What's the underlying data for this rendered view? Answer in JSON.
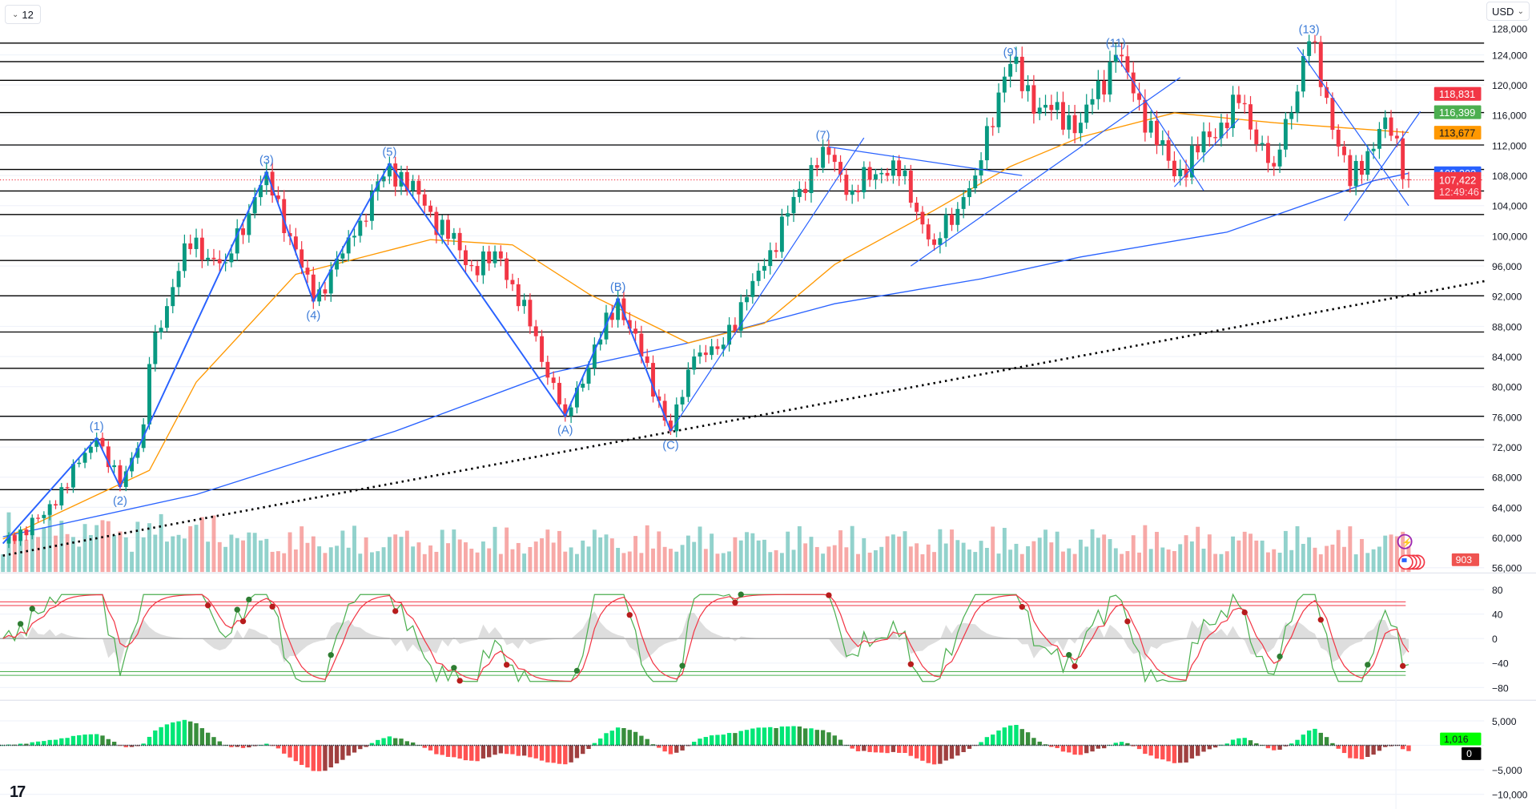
{
  "toolbar": {
    "interval": "12",
    "currency": "USD"
  },
  "logo": {
    "text": "TV"
  },
  "chart_data": {
    "type": "candlestick",
    "price_axis": {
      "ticks": [
        124000,
        120000,
        116000,
        112000,
        108000,
        104000,
        100000,
        96000,
        92000,
        88000,
        84000,
        80000,
        76000,
        72000,
        68000,
        64000,
        60000,
        56000
      ],
      "top_partial": 128000
    },
    "swing_closes": [
      [
        0,
        59200
      ],
      [
        7,
        63000
      ],
      [
        16,
        73200
      ],
      [
        20,
        66700
      ],
      [
        24,
        75000
      ],
      [
        25,
        83000
      ],
      [
        31,
        99000
      ],
      [
        38,
        96500
      ],
      [
        45,
        108500
      ],
      [
        53,
        91300
      ],
      [
        60,
        100000
      ],
      [
        66,
        109600
      ],
      [
        72,
        104000
      ],
      [
        80,
        96000
      ],
      [
        85,
        97000
      ],
      [
        90,
        88000
      ],
      [
        96,
        76100
      ],
      [
        105,
        91700
      ],
      [
        109,
        84000
      ],
      [
        114,
        74100
      ],
      [
        118,
        84000
      ],
      [
        122,
        85000
      ],
      [
        130,
        96000
      ],
      [
        134,
        103000
      ],
      [
        140,
        111800
      ],
      [
        145,
        106000
      ],
      [
        152,
        110000
      ],
      [
        159,
        98800
      ],
      [
        166,
        108000
      ],
      [
        170,
        119000
      ],
      [
        172,
        122800
      ],
      [
        177,
        117000
      ],
      [
        184,
        115000
      ],
      [
        190,
        124000
      ],
      [
        200,
        107900
      ],
      [
        211,
        117600
      ],
      [
        217,
        109200
      ],
      [
        223,
        125800
      ],
      [
        226,
        118300
      ],
      [
        230,
        106600
      ],
      [
        236,
        115700
      ],
      [
        240,
        107400
      ]
    ],
    "horizontal_levels": [
      125560,
      123100,
      120620,
      116340,
      112050,
      108800,
      105950,
      102830,
      96730,
      92050,
      87250,
      82440,
      76080,
      72960,
      66340
    ],
    "ema_orange": [
      [
        0,
        59800
      ],
      [
        25,
        68900
      ],
      [
        33,
        80600
      ],
      [
        50,
        94900
      ],
      [
        63,
        97500
      ],
      [
        73,
        99500
      ],
      [
        87,
        98800
      ],
      [
        100,
        92300
      ],
      [
        117,
        85800
      ],
      [
        130,
        88400
      ],
      [
        142,
        96200
      ],
      [
        159,
        103400
      ],
      [
        172,
        109200
      ],
      [
        184,
        113100
      ],
      [
        200,
        116300
      ],
      [
        217,
        115000
      ],
      [
        240,
        113700
      ]
    ],
    "ema_blue": [
      [
        0,
        60100
      ],
      [
        33,
        65700
      ],
      [
        67,
        74100
      ],
      [
        94,
        81900
      ],
      [
        117,
        85800
      ],
      [
        142,
        91000
      ],
      [
        167,
        94300
      ],
      [
        184,
        97200
      ],
      [
        209,
        100500
      ],
      [
        234,
        107300
      ],
      [
        240,
        108300
      ]
    ],
    "dotted_trendline": [
      [
        0,
        57600
      ],
      [
        253,
        94000
      ]
    ],
    "wave_labels": [
      {
        "label": "(1)",
        "index": 16,
        "price": 73200,
        "pos": "above"
      },
      {
        "label": "(2)",
        "index": 20,
        "price": 66700,
        "pos": "below"
      },
      {
        "label": "(3)",
        "index": 45,
        "price": 108500,
        "pos": "above"
      },
      {
        "label": "(4)",
        "index": 53,
        "price": 91300,
        "pos": "below"
      },
      {
        "label": "(5)",
        "index": 66,
        "price": 109600,
        "pos": "above"
      },
      {
        "label": "(A)",
        "index": 96,
        "price": 76100,
        "pos": "below"
      },
      {
        "label": "(B)",
        "index": 105,
        "price": 91700,
        "pos": "above"
      },
      {
        "label": "(C)",
        "index": 114,
        "price": 74100,
        "pos": "below"
      },
      {
        "label": "(7)",
        "index": 140,
        "price": 111800,
        "pos": "above"
      },
      {
        "label": "(9)",
        "index": 172,
        "price": 122800,
        "pos": "above"
      },
      {
        "label": "(11)",
        "index": 190,
        "price": 124000,
        "pos": "above"
      },
      {
        "label": "(13)",
        "index": 223,
        "price": 125800,
        "pos": "above"
      }
    ],
    "price_badges": [
      {
        "value": "118,831",
        "price": 118831,
        "color": "#f23645",
        "text_color": "#ffffff"
      },
      {
        "value": "116,399",
        "price": 116399,
        "color": "#4caf50",
        "text_color": "#ffffff"
      },
      {
        "value": "113,677",
        "price": 113677,
        "color": "#ff9800",
        "text_color": "#131722"
      },
      {
        "value": "108,303",
        "price": 108303,
        "color": "#2962ff",
        "text_color": "#ffffff"
      }
    ],
    "last_price": {
      "value": "107,422",
      "price": 107422,
      "countdown": "12:49:46",
      "color": "#f23645"
    },
    "volume": {
      "last": "903"
    },
    "oscillator": {
      "ticks": [
        80,
        40,
        0,
        -40,
        -80
      ],
      "upper_bands": [
        60,
        54
      ],
      "lower_bands": [
        -54,
        -60
      ]
    },
    "histogram": {
      "ticks": [
        5000,
        -5000,
        -10000
      ],
      "last": "1,016",
      "zero": "0"
    },
    "colors": {
      "up": "#089981",
      "down": "#f23645",
      "wave": "#2962ff",
      "ema50": "#ff9800",
      "ema200": "#2962ff"
    }
  }
}
